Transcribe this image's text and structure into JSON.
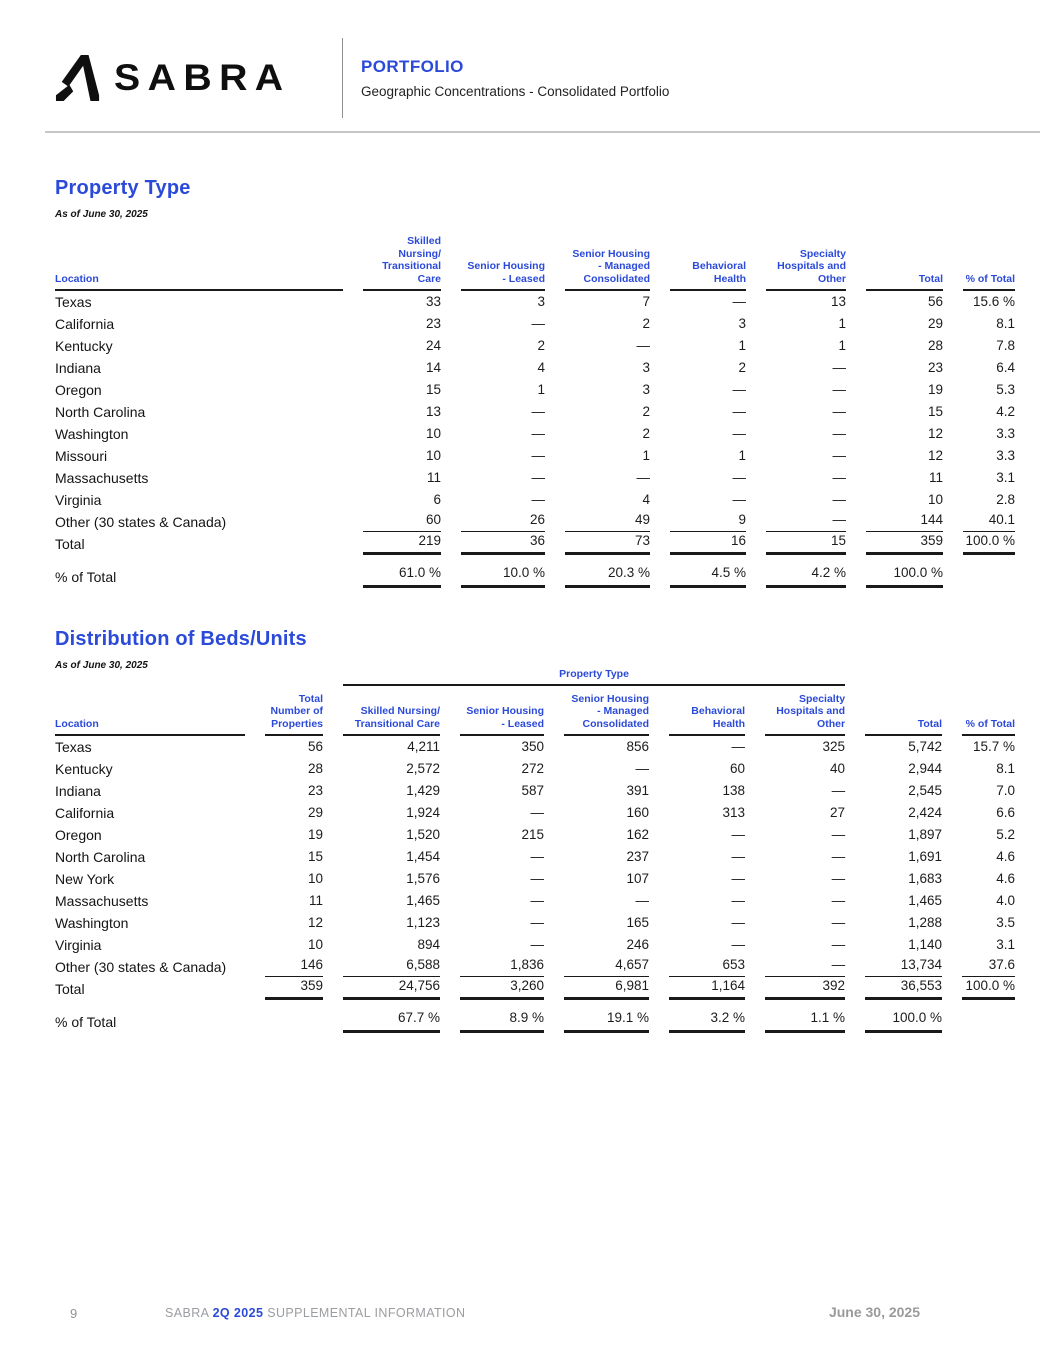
{
  "colors": {
    "accent": "#2b4ad9",
    "ink": "#1c1c1e",
    "line": "#1a1a1a",
    "muted": "#9a9da1",
    "rule": "#c6c6c6"
  },
  "header": {
    "logo_text": "SABRA",
    "kicker": "PORTFOLIO",
    "subtitle": "Geographic Concentrations - Consolidated Portfolio"
  },
  "table1": {
    "title": "Property Type",
    "as_of": "As of June 30, 2025",
    "columns": [
      "Location",
      "Skilled Nursing/\nTransitional Care",
      "Senior Housing\n- Leased",
      "Senior Housing\n- Managed\nConsolidated",
      "Behavioral\nHealth",
      "Specialty\nHospitals and\nOther",
      "Total",
      "% of Total"
    ],
    "rows": [
      {
        "type": "data",
        "label": "Texas",
        "cells": [
          "33",
          "3",
          "7",
          "—",
          "13",
          "56",
          "15.6 %"
        ]
      },
      {
        "type": "data",
        "label": "California",
        "cells": [
          "23",
          "—",
          "2",
          "3",
          "1",
          "29",
          "8.1"
        ]
      },
      {
        "type": "data",
        "label": "Kentucky",
        "cells": [
          "24",
          "2",
          "—",
          "1",
          "1",
          "28",
          "7.8"
        ]
      },
      {
        "type": "data",
        "label": "Indiana",
        "cells": [
          "14",
          "4",
          "3",
          "2",
          "—",
          "23",
          "6.4"
        ]
      },
      {
        "type": "data",
        "label": "Oregon",
        "cells": [
          "15",
          "1",
          "3",
          "—",
          "—",
          "19",
          "5.3"
        ]
      },
      {
        "type": "data",
        "label": "North Carolina",
        "cells": [
          "13",
          "—",
          "2",
          "—",
          "—",
          "15",
          "4.2"
        ]
      },
      {
        "type": "data",
        "label": "Washington",
        "cells": [
          "10",
          "—",
          "2",
          "—",
          "—",
          "12",
          "3.3"
        ]
      },
      {
        "type": "data",
        "label": "Missouri",
        "cells": [
          "10",
          "—",
          "1",
          "1",
          "—",
          "12",
          "3.3"
        ]
      },
      {
        "type": "data",
        "label": "Massachusetts",
        "cells": [
          "11",
          "—",
          "—",
          "—",
          "—",
          "11",
          "3.1"
        ]
      },
      {
        "type": "data",
        "label": "Virginia",
        "cells": [
          "6",
          "—",
          "4",
          "—",
          "—",
          "10",
          "2.8"
        ]
      },
      {
        "type": "other",
        "label": "Other (30 states & Canada)",
        "cells": [
          "60",
          "26",
          "49",
          "9",
          "—",
          "144",
          "40.1"
        ]
      },
      {
        "type": "total",
        "label": "Total",
        "cells": [
          "219",
          "36",
          "73",
          "16",
          "15",
          "359",
          "100.0 %"
        ]
      },
      {
        "type": "pct",
        "label": "% of Total",
        "cells": [
          "61.0 %",
          "10.0 %",
          "20.3 %",
          "4.5 %",
          "4.2 %",
          "100.0 %",
          ""
        ]
      }
    ]
  },
  "table2": {
    "title": "Distribution of Beds/Units",
    "as_of": "As of June 30, 2025",
    "group_label": "Property Type",
    "columns": [
      "Location",
      "Total\nNumber of\nProperties",
      "Skilled Nursing/\nTransitional Care",
      "Senior Housing\n- Leased",
      "Senior Housing\n- Managed\nConsolidated",
      "Behavioral\nHealth",
      "Specialty\nHospitals and\nOther",
      "Total",
      "% of Total"
    ],
    "rows": [
      {
        "type": "data",
        "label": "Texas",
        "cells": [
          "56",
          "4,211",
          "350",
          "856",
          "—",
          "325",
          "5,742",
          "15.7 %"
        ]
      },
      {
        "type": "data",
        "label": "Kentucky",
        "cells": [
          "28",
          "2,572",
          "272",
          "—",
          "60",
          "40",
          "2,944",
          "8.1"
        ]
      },
      {
        "type": "data",
        "label": "Indiana",
        "cells": [
          "23",
          "1,429",
          "587",
          "391",
          "138",
          "—",
          "2,545",
          "7.0"
        ]
      },
      {
        "type": "data",
        "label": "California",
        "cells": [
          "29",
          "1,924",
          "—",
          "160",
          "313",
          "27",
          "2,424",
          "6.6"
        ]
      },
      {
        "type": "data",
        "label": "Oregon",
        "cells": [
          "19",
          "1,520",
          "215",
          "162",
          "—",
          "—",
          "1,897",
          "5.2"
        ]
      },
      {
        "type": "data",
        "label": "North Carolina",
        "cells": [
          "15",
          "1,454",
          "—",
          "237",
          "—",
          "—",
          "1,691",
          "4.6"
        ]
      },
      {
        "type": "data",
        "label": "New York",
        "cells": [
          "10",
          "1,576",
          "—",
          "107",
          "—",
          "—",
          "1,683",
          "4.6"
        ]
      },
      {
        "type": "data",
        "label": "Massachusetts",
        "cells": [
          "11",
          "1,465",
          "—",
          "—",
          "—",
          "—",
          "1,465",
          "4.0"
        ]
      },
      {
        "type": "data",
        "label": "Washington",
        "cells": [
          "12",
          "1,123",
          "—",
          "165",
          "—",
          "—",
          "1,288",
          "3.5"
        ]
      },
      {
        "type": "data",
        "label": "Virginia",
        "cells": [
          "10",
          "894",
          "—",
          "246",
          "—",
          "—",
          "1,140",
          "3.1"
        ]
      },
      {
        "type": "other",
        "label": "Other (30 states & Canada)",
        "cells": [
          "146",
          "6,588",
          "1,836",
          "4,657",
          "653",
          "—",
          "13,734",
          "37.6"
        ]
      },
      {
        "type": "total",
        "label": "Total",
        "cells": [
          "359",
          "24,756",
          "3,260",
          "6,981",
          "1,164",
          "392",
          "36,553",
          "100.0 %"
        ]
      },
      {
        "type": "pct",
        "label": "% of Total",
        "cells": [
          "",
          "67.7 %",
          "8.9 %",
          "19.1 %",
          "3.2 %",
          "1.1 %",
          "100.0 %",
          ""
        ]
      }
    ]
  },
  "footer": {
    "page_number": "9",
    "brand": "SABRA",
    "quarter": "2Q 2025",
    "suffix": "SUPPLEMENTAL INFORMATION",
    "date": "June 30, 2025"
  }
}
